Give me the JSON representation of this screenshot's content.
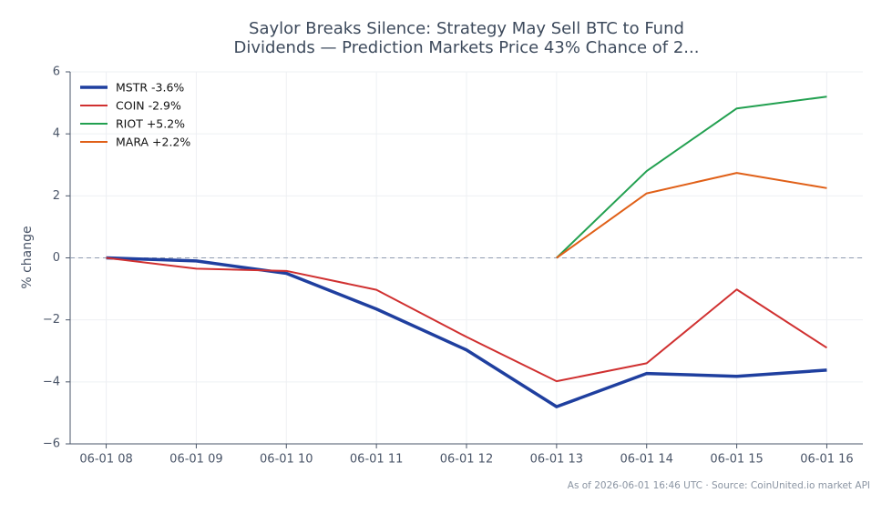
{
  "chart_data": {
    "type": "line",
    "title": [
      "Saylor Breaks Silence: Strategy May Sell BTC to Fund",
      "Dividends — Prediction Markets Price 43% Chance of 2..."
    ],
    "y_label": "% change",
    "footnote": "As of 2026-06-01 16:46 UTC · Source: CoinUnited.io market API",
    "categories": [
      "06-01 08",
      "06-01 09",
      "06-01 10",
      "06-01 11",
      "06-01 12",
      "06-01 13",
      "06-01 14",
      "06-01 15",
      "06-01 16"
    ],
    "series": [
      {
        "name": "MSTR -3.6%",
        "color": "#1f3f9f",
        "width": 3.5,
        "values": [
          0,
          -0.1,
          -0.5,
          -1.65,
          -2.97,
          -4.8,
          -3.73,
          -3.82,
          -3.62
        ]
      },
      {
        "name": "COIN -2.9%",
        "color": "#d03030",
        "width": 2,
        "values": [
          0,
          -0.35,
          -0.42,
          -1.03,
          -2.55,
          -3.98,
          -3.4,
          -1.02,
          -2.9
        ]
      },
      {
        "name": "RIOT +5.2%",
        "color": "#22a050",
        "width": 2,
        "values": [
          null,
          null,
          null,
          null,
          null,
          0,
          2.8,
          4.82,
          5.2
        ]
      },
      {
        "name": "MARA +2.2%",
        "color": "#e06018",
        "width": 2,
        "values": [
          null,
          null,
          null,
          null,
          null,
          0,
          2.08,
          2.74,
          2.25
        ]
      }
    ],
    "ylim": [
      -6,
      6
    ],
    "yticks": [
      {
        "value": -6,
        "label": "−6"
      },
      {
        "value": -4,
        "label": "−4"
      },
      {
        "value": -2,
        "label": "−2"
      },
      0,
      2,
      4,
      6
    ],
    "baseline": 0,
    "grid": true,
    "legend": "upper-left"
  }
}
